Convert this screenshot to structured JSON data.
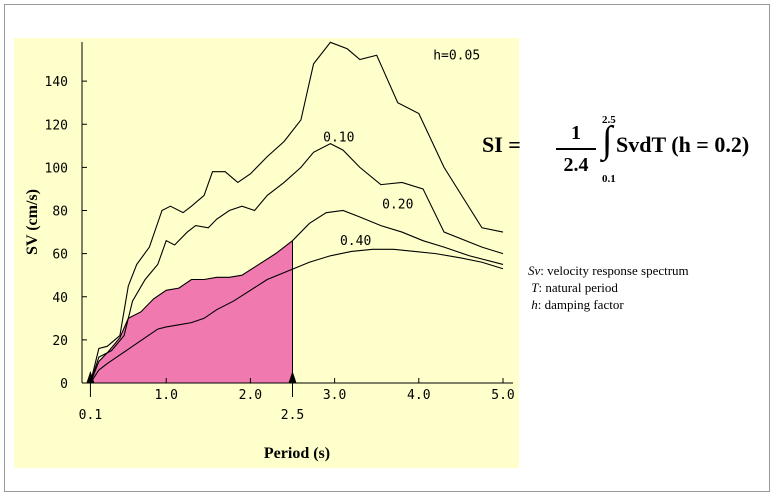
{
  "chart_data": {
    "type": "line",
    "xlabel": "Period (s)",
    "ylabel": "SV (cm/s)",
    "xlim": [
      0,
      5.0
    ],
    "ylim": [
      0,
      160
    ],
    "x_ticks": [
      "1.0",
      "2.0",
      "3.0",
      "4.0",
      "5.0"
    ],
    "y_ticks": [
      "0",
      "20",
      "40",
      "60",
      "80",
      "100",
      "120",
      "140"
    ],
    "grid": false,
    "background": "#ffffcc",
    "fill_color": "#f07ab0",
    "markers": [
      {
        "x": 0.1,
        "label": "0.1"
      },
      {
        "x": 2.5,
        "label": "2.5"
      }
    ],
    "shaded_region": {
      "series": "0.20",
      "from": 0.1,
      "to": 2.5
    },
    "series": [
      {
        "name": "h=0.05",
        "x": [
          0.1,
          0.2,
          0.3,
          0.45,
          0.55,
          0.65,
          0.8,
          0.95,
          1.05,
          1.2,
          1.3,
          1.45,
          1.55,
          1.7,
          1.85,
          2.0,
          2.2,
          2.4,
          2.6,
          2.75,
          2.95,
          3.15,
          3.3,
          3.5,
          3.75,
          4.0,
          4.3,
          4.75,
          5.0
        ],
        "y": [
          0,
          16,
          17,
          22,
          45,
          55,
          63,
          80,
          82,
          79,
          82,
          87,
          98,
          98,
          93,
          97,
          105,
          112,
          122,
          148,
          158,
          155,
          150,
          152,
          130,
          125,
          100,
          72,
          70
        ]
      },
      {
        "name": "0.10",
        "x": [
          0.1,
          0.2,
          0.35,
          0.5,
          0.6,
          0.75,
          0.9,
          1.0,
          1.1,
          1.25,
          1.35,
          1.5,
          1.6,
          1.75,
          1.9,
          2.05,
          2.2,
          2.4,
          2.6,
          2.75,
          2.95,
          3.1,
          3.3,
          3.55,
          3.8,
          4.05,
          4.3,
          4.75,
          5.0
        ],
        "y": [
          0,
          12,
          15,
          22,
          38,
          48,
          55,
          66,
          64,
          70,
          73,
          72,
          76,
          80,
          82,
          80,
          87,
          93,
          100,
          107,
          111,
          108,
          100,
          92,
          93,
          90,
          70,
          63,
          60
        ]
      },
      {
        "name": "0.20",
        "x": [
          0.1,
          0.2,
          0.3,
          0.45,
          0.55,
          0.7,
          0.85,
          1.0,
          1.15,
          1.3,
          1.45,
          1.6,
          1.75,
          1.9,
          2.1,
          2.3,
          2.5,
          2.7,
          2.9,
          3.1,
          3.3,
          3.55,
          3.8,
          4.05,
          4.3,
          4.6,
          5.0
        ],
        "y": [
          0,
          10,
          14,
          21,
          30,
          33,
          39,
          43,
          44,
          48,
          48,
          49,
          49,
          50,
          55,
          60,
          66,
          74,
          79,
          80,
          77,
          73,
          70,
          66,
          63,
          59,
          55
        ]
      },
      {
        "name": "0.40",
        "x": [
          0.1,
          0.2,
          0.3,
          0.45,
          0.6,
          0.75,
          0.9,
          1.0,
          1.15,
          1.3,
          1.45,
          1.6,
          1.8,
          2.0,
          2.2,
          2.45,
          2.7,
          2.95,
          3.2,
          3.45,
          3.7,
          3.95,
          4.2,
          4.5,
          4.75,
          5.0
        ],
        "y": [
          0,
          6,
          9,
          13,
          17,
          21,
          25,
          26,
          27,
          28,
          30,
          34,
          38,
          43,
          48,
          52,
          56,
          59,
          61,
          62,
          62,
          61,
          60,
          58,
          56,
          53
        ]
      }
    ]
  },
  "formula": {
    "lhs": "SI =",
    "numerator": "1",
    "denominator": "2.4",
    "integral_sign": "∫",
    "upper_limit": "2.5",
    "lower_limit": "0.1",
    "rhs": "SvdT (h = 0.2)"
  },
  "legend": [
    {
      "symbol": "Sv",
      "text": ": velocity response spectrum"
    },
    {
      "symbol": "T",
      "text": ": natural period"
    },
    {
      "symbol": "h",
      "text": ": damping factor"
    }
  ]
}
